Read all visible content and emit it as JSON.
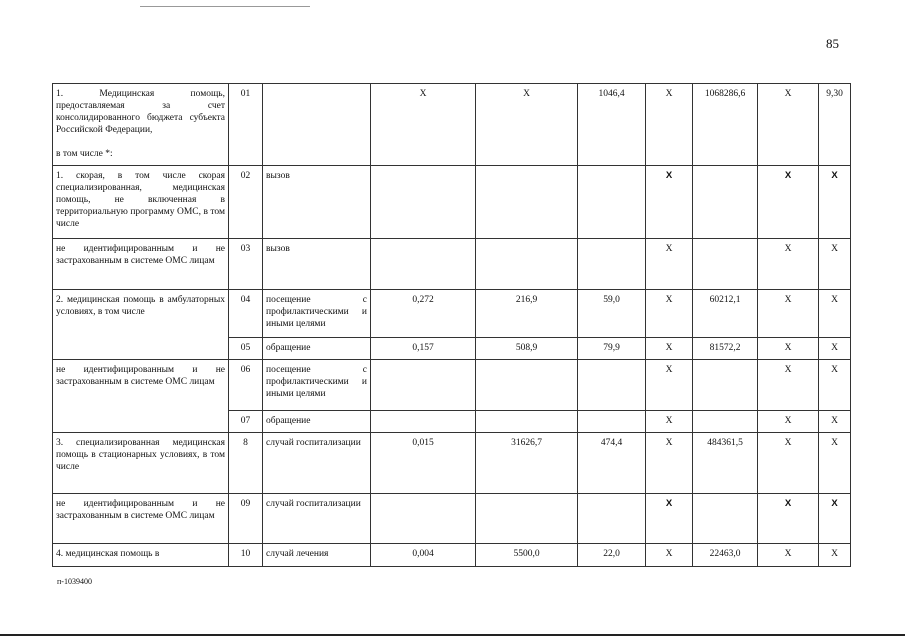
{
  "page_number": "85",
  "footer_code": "п-1039400",
  "rows": [
    {
      "name": "1. Медицинская помощь, предоставляемая за счет консолидированного бюджета субъекта Российской Федерации,",
      "name2": "в том числе *:",
      "code": "01",
      "unit": "",
      "c4": "X",
      "c5": "X",
      "c6": "1046,4",
      "c7": "X",
      "c8": "1068286,6",
      "c9": "X",
      "c10": "9,30"
    },
    {
      "name": "1. скорая, в том числе скорая специализированная, медицинская помощь, не включенная в территориальную программу ОМС, в том числе",
      "code": "02",
      "unit": "вызов",
      "c4": "",
      "c5": "",
      "c6": "",
      "c7": "X",
      "c8": "",
      "c9": "X",
      "c10": "X"
    },
    {
      "name": "не идентифицированным и не застрахованным в системе ОМС лицам",
      "code": "03",
      "unit": "вызов",
      "c4": "",
      "c5": "",
      "c6": "",
      "c7": "X",
      "c8": "",
      "c9": "X",
      "c10": "X"
    },
    {
      "name": "2. медицинская помощь в амбулаторных условиях, в том числе",
      "code": "04",
      "unit": "посещение с профилактическими и иными целями",
      "c4": "0,272",
      "c5": "216,9",
      "c6": "59,0",
      "c7": "X",
      "c8": "60212,1",
      "c9": "X",
      "c10": "X"
    },
    {
      "code": "05",
      "unit": "обращение",
      "c4": "0,157",
      "c5": "508,9",
      "c6": "79,9",
      "c7": "X",
      "c8": "81572,2",
      "c9": "X",
      "c10": "X"
    },
    {
      "name": "не идентифицированным и не застрахованным в системе ОМС лицам",
      "code": "06",
      "unit": "посещение с профилактическими и иными целями",
      "c4": "",
      "c5": "",
      "c6": "",
      "c7": "X",
      "c8": "",
      "c9": "X",
      "c10": "X"
    },
    {
      "code": "07",
      "unit": "обращение",
      "c4": "",
      "c5": "",
      "c6": "",
      "c7": "X",
      "c8": "",
      "c9": "X",
      "c10": "X"
    },
    {
      "name": "3. специализированная медицинская помощь в стационарных условиях, в том числе",
      "code": "8",
      "unit": "случай госпитализации",
      "c4": "0,015",
      "c5": "31626,7",
      "c6": "474,4",
      "c7": "X",
      "c8": "484361,5",
      "c9": "X",
      "c10": "X"
    },
    {
      "name": "не идентифицированным и не застрахованным в системе ОМС лицам",
      "code": "09",
      "unit": "случай госпитализации",
      "c4": "",
      "c5": "",
      "c6": "",
      "c7": "X",
      "c8": "",
      "c9": "X",
      "c10": "X"
    },
    {
      "name": "4. медицинская помощь в",
      "code": "10",
      "unit": "случай лечения",
      "c4": "0,004",
      "c5": "5500,0",
      "c6": "22,0",
      "c7": "X",
      "c8": "22463,0",
      "c9": "X",
      "c10": "X"
    }
  ]
}
